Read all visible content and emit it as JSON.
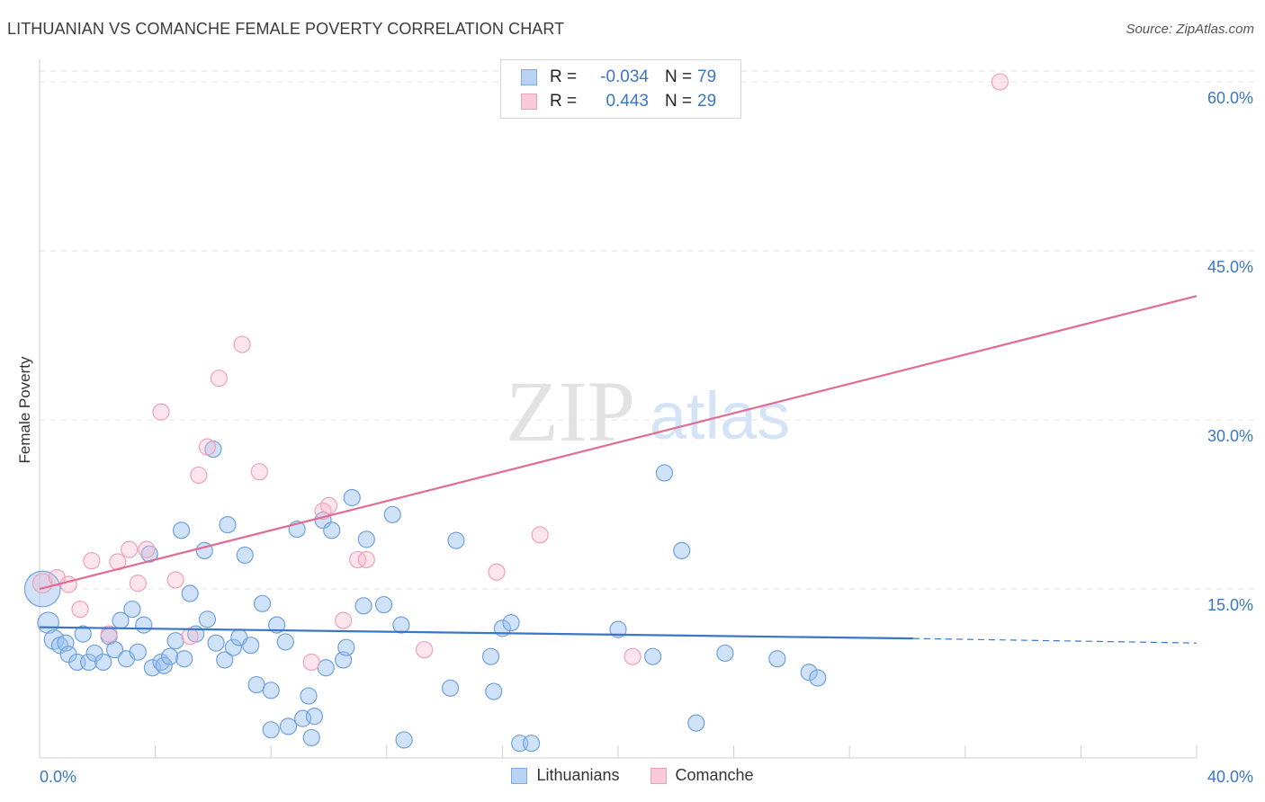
{
  "header": {
    "title": "LITHUANIAN VS COMANCHE FEMALE POVERTY CORRELATION CHART",
    "source": "Source: ZipAtlas.com"
  },
  "watermark": {
    "zip": "ZIP",
    "atlas": "atlas"
  },
  "legend": {
    "rows": [
      {
        "label": "R =",
        "r": "-0.034",
        "n_label": "N =",
        "n": "79",
        "color": "#7aaae8",
        "fill": "#b8d3f4"
      },
      {
        "label": "R =",
        "r": "0.443",
        "n_label": "N =",
        "n": "29",
        "color": "#f0a0b8",
        "fill": "#f8cad8"
      }
    ]
  },
  "bottom_legend": {
    "items": [
      "Lithuanians",
      "Comanche"
    ]
  },
  "colors": {
    "blue": "#3a76c8",
    "blue_fill": "rgba(150,190,240,0.45)",
    "blue_stroke": "#6fa0e0",
    "pink": "#e06c94",
    "pink_fill": "rgba(245,180,200,0.35)",
    "pink_stroke": "#f0a0b8",
    "tick_label": "#3a76c8"
  },
  "chart_data": {
    "type": "scatter",
    "title": "LITHUANIAN VS COMANCHE FEMALE POVERTY CORRELATION CHART",
    "xlabel": "",
    "ylabel": "Female Poverty",
    "xlim": [
      0,
      40
    ],
    "ylim": [
      0,
      62
    ],
    "x_tick_labels": [
      "0.0%",
      "40.0%"
    ],
    "y_ticks": [
      15,
      30,
      45,
      60
    ],
    "y_tick_labels": [
      "15.0%",
      "30.0%",
      "45.0%",
      "60.0%"
    ],
    "series": [
      {
        "name": "Lithuanians",
        "r": -0.034,
        "n": 79,
        "trend": {
          "x0": 0,
          "y0": 11.6,
          "x1": 30.2,
          "y1": 10.6,
          "dash_x1": 40,
          "dash_y1": 10.2
        },
        "points": [
          [
            0.1,
            15.0,
            2.2
          ],
          [
            0.3,
            12.0,
            1.3
          ],
          [
            0.5,
            10.5,
            1.2
          ],
          [
            0.7,
            10.0,
            1.0
          ],
          [
            0.9,
            10.2,
            1.0
          ],
          [
            1.0,
            9.2,
            1.0
          ],
          [
            1.3,
            8.5,
            1.0
          ],
          [
            1.5,
            11.0,
            1.0
          ],
          [
            1.7,
            8.5,
            1.0
          ],
          [
            1.9,
            9.3,
            1.0
          ],
          [
            2.2,
            8.5,
            1.0
          ],
          [
            2.4,
            10.8,
            1.0
          ],
          [
            2.6,
            9.6,
            1.0
          ],
          [
            2.8,
            12.2,
            1.0
          ],
          [
            3.0,
            8.8,
            1.0
          ],
          [
            3.2,
            13.2,
            1.0
          ],
          [
            3.4,
            9.4,
            1.0
          ],
          [
            3.6,
            11.8,
            1.0
          ],
          [
            3.8,
            18.1,
            1.0
          ],
          [
            3.9,
            8.0,
            1.0
          ],
          [
            4.2,
            8.5,
            1.0
          ],
          [
            4.3,
            8.2,
            1.0
          ],
          [
            4.5,
            9.0,
            1.0
          ],
          [
            4.7,
            10.4,
            1.0
          ],
          [
            4.9,
            20.2,
            1.0
          ],
          [
            5.0,
            8.8,
            1.0
          ],
          [
            5.2,
            14.6,
            1.0
          ],
          [
            5.4,
            11.0,
            1.0
          ],
          [
            5.7,
            18.4,
            1.0
          ],
          [
            5.8,
            12.3,
            1.0
          ],
          [
            6.0,
            27.4,
            1.0
          ],
          [
            6.1,
            10.2,
            1.0
          ],
          [
            6.4,
            8.7,
            1.0
          ],
          [
            6.5,
            20.7,
            1.0
          ],
          [
            6.7,
            9.8,
            1.0
          ],
          [
            6.9,
            10.7,
            1.0
          ],
          [
            7.1,
            18.0,
            1.0
          ],
          [
            7.3,
            10.0,
            1.0
          ],
          [
            7.5,
            6.5,
            1.0
          ],
          [
            7.7,
            13.7,
            1.0
          ],
          [
            8.0,
            6.0,
            1.0
          ],
          [
            8.0,
            2.5,
            1.0
          ],
          [
            8.2,
            11.8,
            1.0
          ],
          [
            8.5,
            10.3,
            1.0
          ],
          [
            8.6,
            2.8,
            1.0
          ],
          [
            8.9,
            20.3,
            1.0
          ],
          [
            9.1,
            3.5,
            1.0
          ],
          [
            9.3,
            5.5,
            1.0
          ],
          [
            9.4,
            1.8,
            1.0
          ],
          [
            9.5,
            3.7,
            1.0
          ],
          [
            9.8,
            21.1,
            1.0
          ],
          [
            9.9,
            8.0,
            1.0
          ],
          [
            10.1,
            20.2,
            1.0
          ],
          [
            10.5,
            8.7,
            1.0
          ],
          [
            10.6,
            9.8,
            1.0
          ],
          [
            10.8,
            23.1,
            1.0
          ],
          [
            11.2,
            13.5,
            1.0
          ],
          [
            11.3,
            19.4,
            1.0
          ],
          [
            11.9,
            13.6,
            1.0
          ],
          [
            12.2,
            21.6,
            1.0
          ],
          [
            12.5,
            11.8,
            1.0
          ],
          [
            12.6,
            1.6,
            1.0
          ],
          [
            14.2,
            6.2,
            1.0
          ],
          [
            14.4,
            19.3,
            1.0
          ],
          [
            15.6,
            9.0,
            1.0
          ],
          [
            15.7,
            5.9,
            1.0
          ],
          [
            16.0,
            11.5,
            1.0
          ],
          [
            16.3,
            12.0,
            1.0
          ],
          [
            16.6,
            1.3,
            1.0
          ],
          [
            20.0,
            11.4,
            1.0
          ],
          [
            21.2,
            9.0,
            1.0
          ],
          [
            21.6,
            25.3,
            1.0
          ],
          [
            22.2,
            18.4,
            1.0
          ],
          [
            22.7,
            3.1,
            1.0
          ],
          [
            23.7,
            9.3,
            1.0
          ],
          [
            25.5,
            8.8,
            1.0
          ],
          [
            26.6,
            7.6,
            1.0
          ],
          [
            26.9,
            7.1,
            1.0
          ],
          [
            17.0,
            1.3,
            1.0
          ]
        ]
      },
      {
        "name": "Comanche",
        "r": 0.443,
        "n": 29,
        "trend": {
          "x0": 0,
          "y0": 15.0,
          "x1": 40,
          "y1": 41.0
        },
        "points": [
          [
            0.1,
            15.5,
            1.2
          ],
          [
            0.6,
            16.0,
            1.0
          ],
          [
            1.0,
            15.4,
            1.0
          ],
          [
            1.4,
            13.2,
            1.0
          ],
          [
            1.8,
            17.5,
            1.0
          ],
          [
            2.4,
            11.0,
            1.0
          ],
          [
            2.7,
            17.4,
            1.0
          ],
          [
            3.1,
            18.5,
            1.0
          ],
          [
            3.4,
            15.5,
            1.0
          ],
          [
            3.7,
            18.5,
            1.0
          ],
          [
            4.2,
            30.7,
            1.0
          ],
          [
            4.7,
            15.8,
            1.0
          ],
          [
            5.2,
            10.8,
            1.0
          ],
          [
            5.5,
            25.1,
            1.0
          ],
          [
            5.8,
            27.6,
            1.0
          ],
          [
            6.2,
            33.7,
            1.0
          ],
          [
            7.0,
            36.7,
            1.0
          ],
          [
            7.6,
            25.4,
            1.0
          ],
          [
            9.4,
            8.5,
            1.0
          ],
          [
            9.8,
            21.9,
            1.0
          ],
          [
            10.0,
            22.4,
            1.0
          ],
          [
            10.5,
            12.2,
            1.0
          ],
          [
            11.0,
            17.6,
            1.0
          ],
          [
            11.3,
            17.6,
            1.0
          ],
          [
            13.3,
            9.6,
            1.0
          ],
          [
            15.8,
            16.5,
            1.0
          ],
          [
            17.3,
            19.8,
            1.0
          ],
          [
            20.5,
            9.0,
            1.0
          ],
          [
            33.2,
            60.0,
            1.0
          ]
        ]
      }
    ]
  }
}
